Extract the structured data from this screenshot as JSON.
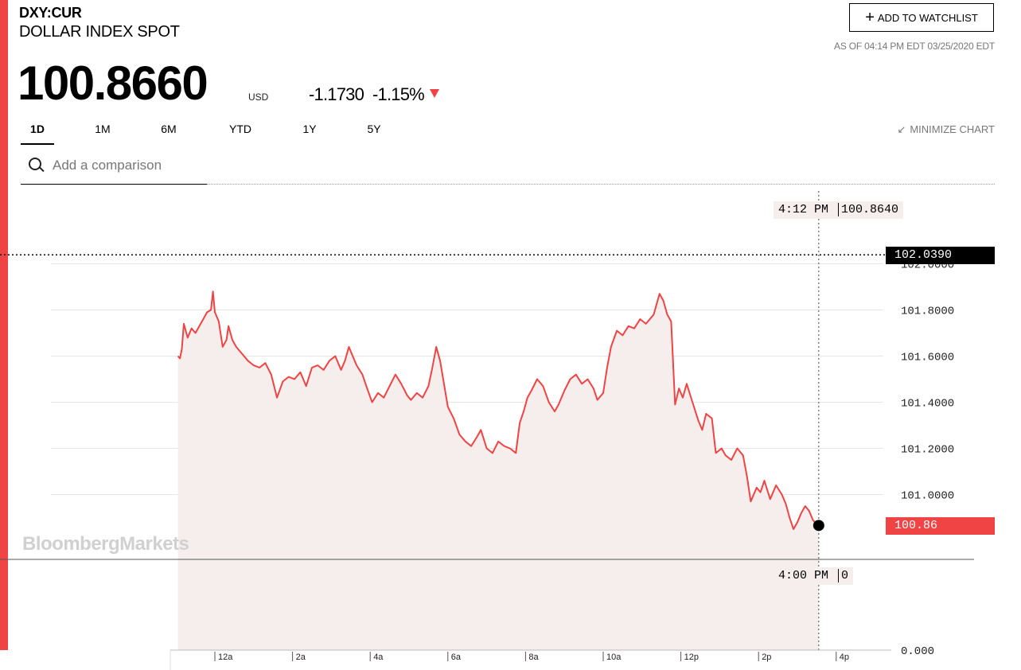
{
  "header": {
    "ticker": "DXY:CUR",
    "name": "DOLLAR INDEX SPOT",
    "price": "100.8660",
    "currency": "USD",
    "change": "-1.1730",
    "change_pct": "-1.15%",
    "direction_icon": "down-triangle-icon",
    "watchlist_label": "ADD TO WATCHLIST",
    "as_of": "AS OF 04:14 PM EDT 03/25/2020 EDT"
  },
  "tabs": [
    {
      "label": "1D",
      "active": true
    },
    {
      "label": "1M"
    },
    {
      "label": "6M"
    },
    {
      "label": "YTD"
    },
    {
      "label": "1Y"
    },
    {
      "label": "5Y"
    }
  ],
  "minimize_label": "MINIMIZE CHART",
  "search": {
    "placeholder": "Add a comparison"
  },
  "colors": {
    "accent": "#f04343",
    "area_fill": "#f6eded",
    "ref_box": "#000000"
  },
  "watermark": "BloombergMarkets",
  "hover": {
    "time": "4:12 PM",
    "value": "100.8640"
  },
  "volume_hover": {
    "time": "4:00 PM",
    "value": "0"
  },
  "reference_value": "102.0390",
  "last_value": "100.86",
  "volume_axis_label": "0.000",
  "chart_data": {
    "type": "area",
    "title": "",
    "y_ticks": [
      "101.0000",
      "101.2000",
      "101.4000",
      "101.6000",
      "101.8000",
      "102.0000"
    ],
    "ylim": [
      100.69,
      102.26
    ],
    "x_ticks": [
      "12a",
      "2a",
      "4a",
      "6a",
      "8a",
      "10a",
      "12p",
      "2p",
      "4p"
    ],
    "x_unit": "hours since 12a",
    "xlim": [
      -1.0,
      16.4
    ],
    "reference_line": 102.039,
    "last_value": 100.866,
    "grid": true,
    "series": [
      {
        "points": [
          [
            -0.95,
            101.6
          ],
          [
            -0.9,
            101.59
          ],
          [
            -0.85,
            101.63
          ],
          [
            -0.8,
            101.74
          ],
          [
            -0.7,
            101.68
          ],
          [
            -0.6,
            101.72
          ],
          [
            -0.5,
            101.7
          ],
          [
            -0.4,
            101.73
          ],
          [
            -0.3,
            101.76
          ],
          [
            -0.2,
            101.79
          ],
          [
            -0.1,
            101.8
          ],
          [
            -0.05,
            101.88
          ],
          [
            0.0,
            101.79
          ],
          [
            0.1,
            101.75
          ],
          [
            0.2,
            101.64
          ],
          [
            0.3,
            101.67
          ],
          [
            0.35,
            101.73
          ],
          [
            0.45,
            101.67
          ],
          [
            0.55,
            101.64
          ],
          [
            0.7,
            101.61
          ],
          [
            0.85,
            101.58
          ],
          [
            1.0,
            101.56
          ],
          [
            1.15,
            101.55
          ],
          [
            1.3,
            101.57
          ],
          [
            1.45,
            101.52
          ],
          [
            1.6,
            101.42
          ],
          [
            1.75,
            101.49
          ],
          [
            1.9,
            101.51
          ],
          [
            2.05,
            101.5
          ],
          [
            2.2,
            101.53
          ],
          [
            2.35,
            101.47
          ],
          [
            2.5,
            101.55
          ],
          [
            2.65,
            101.56
          ],
          [
            2.8,
            101.54
          ],
          [
            2.95,
            101.58
          ],
          [
            3.1,
            101.6
          ],
          [
            3.25,
            101.54
          ],
          [
            3.35,
            101.58
          ],
          [
            3.45,
            101.64
          ],
          [
            3.55,
            101.6
          ],
          [
            3.65,
            101.56
          ],
          [
            3.8,
            101.52
          ],
          [
            3.9,
            101.47
          ],
          [
            4.05,
            101.4
          ],
          [
            4.2,
            101.44
          ],
          [
            4.35,
            101.42
          ],
          [
            4.5,
            101.47
          ],
          [
            4.65,
            101.52
          ],
          [
            4.8,
            101.48
          ],
          [
            4.95,
            101.43
          ],
          [
            5.05,
            101.41
          ],
          [
            5.2,
            101.44
          ],
          [
            5.35,
            101.42
          ],
          [
            5.5,
            101.47
          ],
          [
            5.6,
            101.55
          ],
          [
            5.7,
            101.64
          ],
          [
            5.8,
            101.58
          ],
          [
            5.9,
            101.48
          ],
          [
            6.0,
            101.38
          ],
          [
            6.15,
            101.33
          ],
          [
            6.3,
            101.26
          ],
          [
            6.45,
            101.23
          ],
          [
            6.6,
            101.21
          ],
          [
            6.75,
            101.25
          ],
          [
            6.85,
            101.28
          ],
          [
            7.0,
            101.2
          ],
          [
            7.15,
            101.18
          ],
          [
            7.3,
            101.23
          ],
          [
            7.45,
            101.21
          ],
          [
            7.6,
            101.2
          ],
          [
            7.75,
            101.18
          ],
          [
            7.85,
            101.31
          ],
          [
            7.95,
            101.36
          ],
          [
            8.05,
            101.42
          ],
          [
            8.15,
            101.45
          ],
          [
            8.3,
            101.5
          ],
          [
            8.45,
            101.47
          ],
          [
            8.6,
            101.4
          ],
          [
            8.75,
            101.36
          ],
          [
            8.85,
            101.39
          ],
          [
            9.0,
            101.45
          ],
          [
            9.15,
            101.5
          ],
          [
            9.3,
            101.52
          ],
          [
            9.45,
            101.48
          ],
          [
            9.6,
            101.5
          ],
          [
            9.75,
            101.46
          ],
          [
            9.85,
            101.41
          ],
          [
            10.0,
            101.44
          ],
          [
            10.1,
            101.55
          ],
          [
            10.2,
            101.64
          ],
          [
            10.35,
            101.71
          ],
          [
            10.5,
            101.69
          ],
          [
            10.65,
            101.73
          ],
          [
            10.8,
            101.72
          ],
          [
            10.95,
            101.76
          ],
          [
            11.1,
            101.74
          ],
          [
            11.3,
            101.78
          ],
          [
            11.45,
            101.87
          ],
          [
            11.55,
            101.84
          ],
          [
            11.65,
            101.78
          ],
          [
            11.75,
            101.75
          ],
          [
            11.85,
            101.39
          ],
          [
            11.95,
            101.46
          ],
          [
            12.05,
            101.42
          ],
          [
            12.15,
            101.48
          ],
          [
            12.3,
            101.4
          ],
          [
            12.45,
            101.32
          ],
          [
            12.55,
            101.28
          ],
          [
            12.65,
            101.35
          ],
          [
            12.8,
            101.33
          ],
          [
            12.9,
            101.18
          ],
          [
            13.05,
            101.2
          ],
          [
            13.15,
            101.17
          ],
          [
            13.3,
            101.15
          ],
          [
            13.45,
            101.2
          ],
          [
            13.6,
            101.17
          ],
          [
            13.7,
            101.08
          ],
          [
            13.8,
            100.97
          ],
          [
            13.95,
            101.03
          ],
          [
            14.05,
            101.01
          ],
          [
            14.15,
            101.06
          ],
          [
            14.3,
            100.98
          ],
          [
            14.45,
            101.04
          ],
          [
            14.6,
            101.0
          ],
          [
            14.7,
            100.96
          ],
          [
            14.8,
            100.9
          ],
          [
            14.9,
            100.85
          ],
          [
            15.0,
            100.88
          ],
          [
            15.1,
            100.92
          ],
          [
            15.2,
            100.95
          ],
          [
            15.3,
            100.93
          ],
          [
            15.4,
            100.89
          ],
          [
            15.5,
            100.87
          ],
          [
            15.55,
            100.866
          ]
        ]
      }
    ]
  }
}
